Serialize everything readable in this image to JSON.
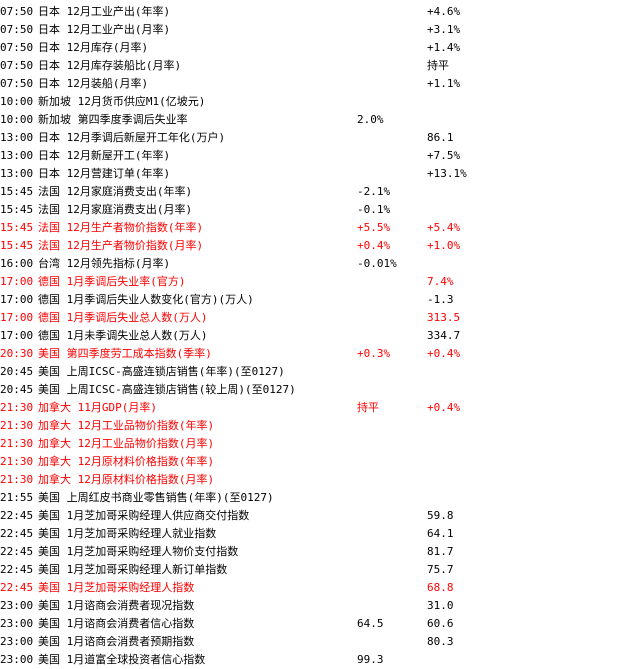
{
  "rows": [
    {
      "time": "07:50",
      "country": "日本",
      "event": "12月工业产出(年率)",
      "forecast": "+4.6%"
    },
    {
      "time": "07:50",
      "country": "日本",
      "event": "12月工业产出(月率)",
      "forecast": "+3.1%"
    },
    {
      "time": "07:50",
      "country": "日本",
      "event": "12月库存(月率)",
      "forecast": "+1.4%"
    },
    {
      "time": "07:50",
      "country": "日本",
      "event": "12月库存装船比(月率)",
      "forecast": "持平"
    },
    {
      "time": "07:50",
      "country": "日本",
      "event": "12月装船(月率)",
      "forecast": "+1.1%"
    },
    {
      "time": "10:00",
      "country": "新加坡",
      "event": "12月货币供应M1(亿坡元)"
    },
    {
      "time": "10:00",
      "country": "新加坡",
      "event": "第四季度季调后失业率",
      "previous": "2.0%"
    },
    {
      "time": "13:00",
      "country": "日本",
      "event": "12月季调后新屋开工年化(万户)",
      "forecast": "86.1"
    },
    {
      "time": "13:00",
      "country": "日本",
      "event": "12月新屋开工(年率)",
      "forecast": "+7.5%"
    },
    {
      "time": "13:00",
      "country": "日本",
      "event": "12月营建订单(年率)",
      "forecast": "+13.1%"
    },
    {
      "time": "15:45",
      "country": "法国",
      "event": "12月家庭消费支出(年率)",
      "previous": "-2.1%"
    },
    {
      "time": "15:45",
      "country": "法国",
      "event": "12月家庭消费支出(月率)",
      "previous": "-0.1%"
    },
    {
      "time": "15:45",
      "country": "法国",
      "event": "12月生产者物价指数(年率)",
      "previous": "+5.5%",
      "forecast": "+5.4%",
      "color": "#ff0000"
    },
    {
      "time": "15:45",
      "country": "法国",
      "event": "12月生产者物价指数(月率)",
      "previous": "+0.4%",
      "forecast": "+1.0%",
      "color": "#ff0000"
    },
    {
      "time": "16:00",
      "country": "台湾",
      "event": "12月领先指标(月率)",
      "previous": "-0.01%"
    },
    {
      "time": "17:00",
      "country": "德国",
      "event": "1月季调后失业率(官方)",
      "forecast": "7.4%",
      "color": "#ff0000"
    },
    {
      "time": "17:00",
      "country": "德国",
      "event": "1月季调后失业人数变化(官方)(万人)",
      "forecast": "-1.3"
    },
    {
      "time": "17:00",
      "country": "德国",
      "event": "1月季调后失业总人数(万人)",
      "forecast": "313.5",
      "color": "#ff0000"
    },
    {
      "time": "17:00",
      "country": "德国",
      "event": "1月未季调失业总人数(万人)",
      "forecast": "334.7"
    },
    {
      "time": "20:30",
      "country": "美国",
      "event": "第四季度劳工成本指数(季率)",
      "previous": "+0.3%",
      "forecast": "+0.4%",
      "color": "#ff0000"
    },
    {
      "time": "20:45",
      "country": "美国",
      "event": "上周ICSC-高盛连锁店销售(年率)(至0127)"
    },
    {
      "time": "20:45",
      "country": "美国",
      "event": "上周ICSC-高盛连锁店销售(较上周)(至0127)"
    },
    {
      "time": "21:30",
      "country": "加拿大",
      "event": "11月GDP(月率)",
      "previous": "持平",
      "forecast": "+0.4%",
      "color": "#ff0000"
    },
    {
      "time": "21:30",
      "country": "加拿大",
      "event": "12月工业品物价指数(年率)",
      "color": "#ff0000"
    },
    {
      "time": "21:30",
      "country": "加拿大",
      "event": "12月工业品物价指数(月率)",
      "color": "#ff0000"
    },
    {
      "time": "21:30",
      "country": "加拿大",
      "event": "12月原材料价格指数(年率)",
      "color": "#ff0000"
    },
    {
      "time": "21:30",
      "country": "加拿大",
      "event": "12月原材料价格指数(月率)",
      "color": "#ff0000"
    },
    {
      "time": "21:55",
      "country": "美国",
      "event": "上周红皮书商业零售销售(年率)(至0127)"
    },
    {
      "time": "22:45",
      "country": "美国",
      "event": "1月芝加哥采购经理人供应商交付指数",
      "forecast": "59.8"
    },
    {
      "time": "22:45",
      "country": "美国",
      "event": "1月芝加哥采购经理人就业指数",
      "forecast": "64.1"
    },
    {
      "time": "22:45",
      "country": "美国",
      "event": "1月芝加哥采购经理人物价支付指数",
      "forecast": "81.7"
    },
    {
      "time": "22:45",
      "country": "美国",
      "event": "1月芝加哥采购经理人新订单指数",
      "forecast": "75.7"
    },
    {
      "time": "22:45",
      "country": "美国",
      "event": "1月芝加哥采购经理人指数",
      "forecast": "68.8",
      "color": "#ff0000"
    },
    {
      "time": "23:00",
      "country": "美国",
      "event": "1月谘商会消费者现况指数",
      "forecast": "31.0"
    },
    {
      "time": "23:00",
      "country": "美国",
      "event": "1月谘商会消费者信心指数",
      "previous": "64.5",
      "forecast": "60.6"
    },
    {
      "time": "23:00",
      "country": "美国",
      "event": "1月谘商会消费者预期指数",
      "forecast": "80.3"
    },
    {
      "time": "23:00",
      "country": "美国",
      "event": "1月道富全球投资者信心指数",
      "previous": "99.3"
    }
  ]
}
